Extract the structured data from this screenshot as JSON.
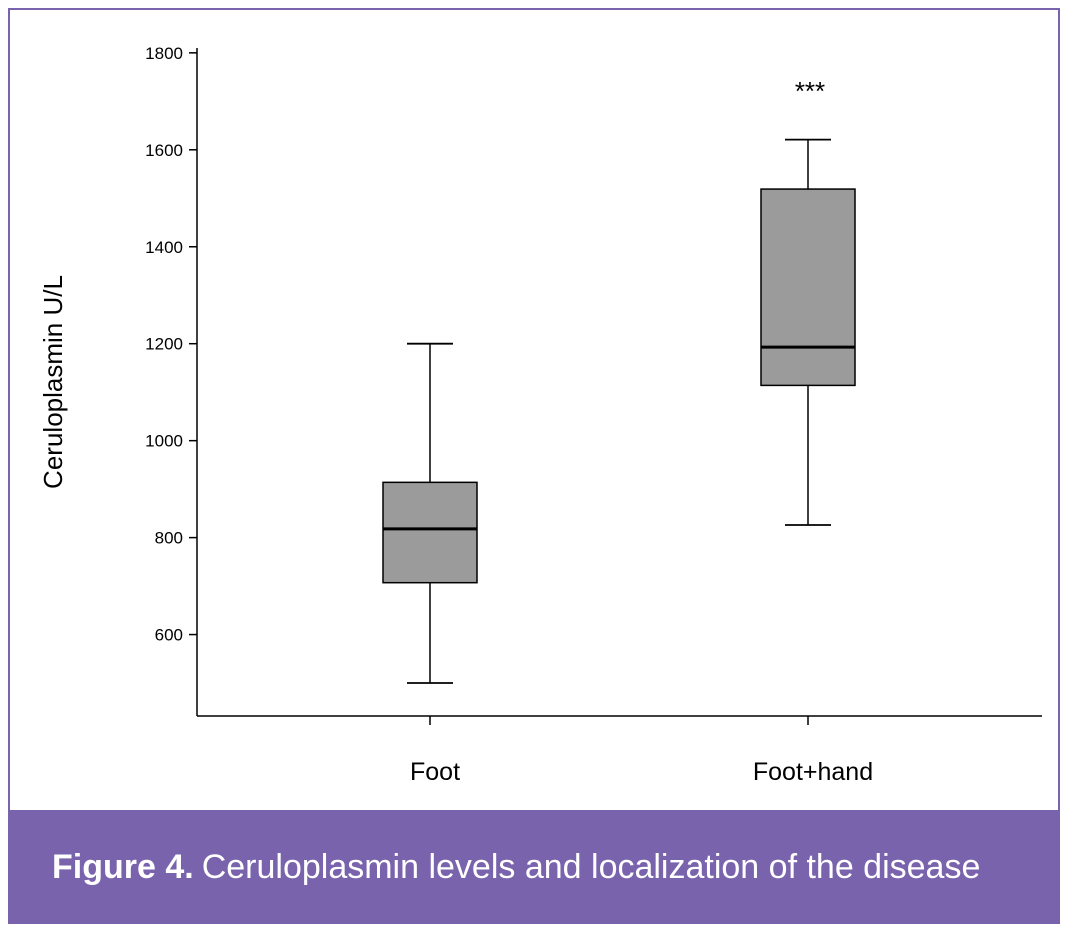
{
  "caption": {
    "label": "Figure 4.",
    "text": "Ceruloplasmin levels and localization of the disease"
  },
  "colors": {
    "frame": "#7a63ad",
    "caption_bg": "#7a63ad",
    "box_fill": "#9b9b9b",
    "stroke": "#000000"
  },
  "chart_data": {
    "type": "boxplot",
    "title": "",
    "xlabel": "",
    "ylabel": "Ceruloplasmin U/L",
    "ylim": [
      432,
      1810
    ],
    "yticks": [
      600,
      800,
      1000,
      1200,
      1400,
      1600,
      1800
    ],
    "grid": false,
    "categories": [
      "Foot",
      "Foot+hand"
    ],
    "boxes": [
      {
        "category": "Foot",
        "min": 500,
        "q1": 707,
        "median": 818,
        "q3": 914,
        "max": 1200,
        "annotation": ""
      },
      {
        "category": "Foot+hand",
        "min": 826,
        "q1": 1114,
        "median": 1193,
        "q3": 1519,
        "max": 1621,
        "annotation": "***"
      }
    ]
  }
}
